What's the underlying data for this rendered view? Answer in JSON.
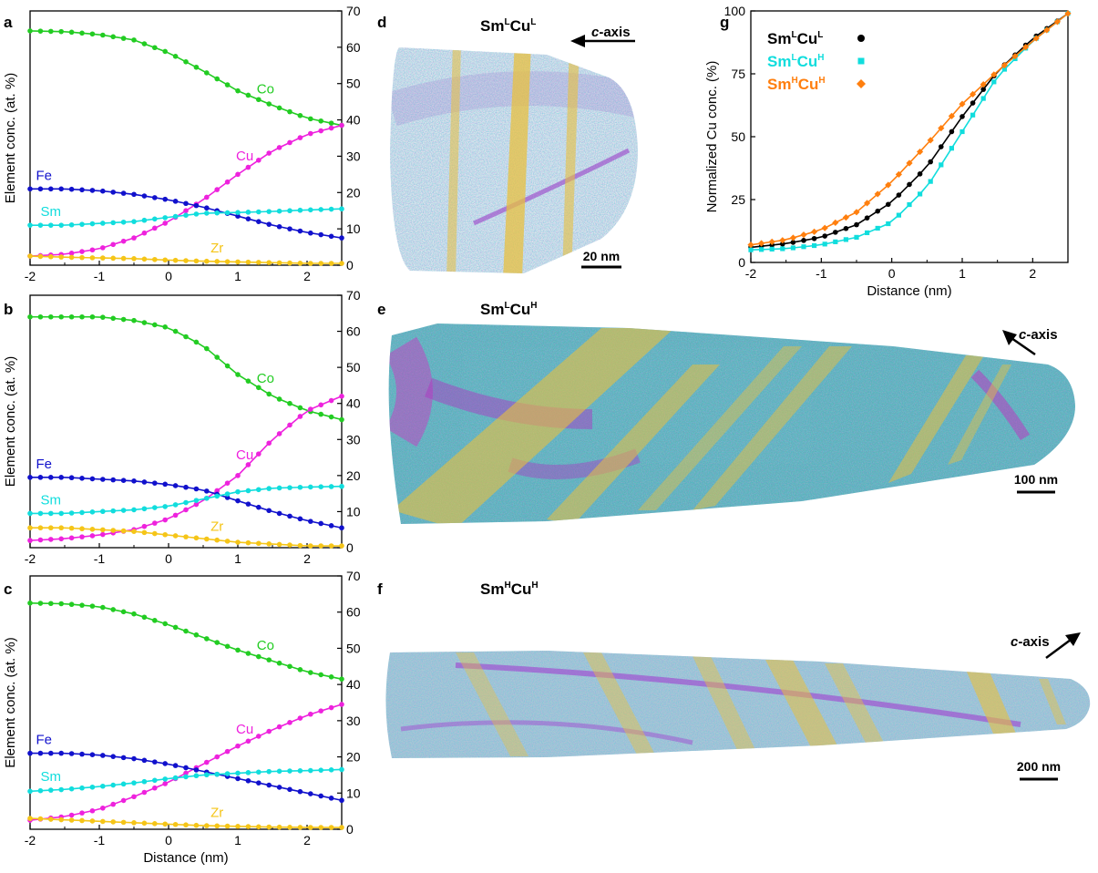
{
  "figure": {
    "panels": {
      "a": {
        "label": "a"
      },
      "b": {
        "label": "b"
      },
      "c": {
        "label": "c"
      },
      "d": {
        "label": "d",
        "title_base1": "Sm",
        "title_sup1": "L",
        "title_base2": "Cu",
        "title_sup2": "L",
        "axis_prefix": "c",
        "axis_suffix": "-axis",
        "scale_bar": "20 nm"
      },
      "e": {
        "label": "e",
        "title_base1": "Sm",
        "title_sup1": "L",
        "title_base2": "Cu",
        "title_sup2": "H",
        "axis_prefix": "c",
        "axis_suffix": "-axis",
        "scale_bar": "100 nm"
      },
      "f": {
        "label": "f",
        "title_base1": "Sm",
        "title_sup1": "H",
        "title_base2": "Cu",
        "title_sup2": "H",
        "axis_prefix": "c",
        "axis_suffix": "-axis",
        "scale_bar": "200 nm"
      },
      "g": {
        "label": "g"
      }
    },
    "colors": {
      "Co": "#22cc22",
      "Cu": "#ee22dd",
      "Fe": "#1111cc",
      "Sm": "#11dddd",
      "Zr": "#f5c518",
      "SmLCuL": "#000000",
      "SmLCuH": "#11dddd",
      "SmHCuH": "#ff7f0e",
      "axes": "#000000",
      "precipitate": "#e8c040"
    }
  },
  "chart_data": [
    {
      "id": "a",
      "type": "line",
      "title": "",
      "xlabel": "",
      "ylabel": "Element conc. (at. %)",
      "xlim": [
        -2,
        2.5
      ],
      "ylim": [
        0,
        70
      ],
      "xticks": [
        "-2",
        "-1",
        "0",
        "1",
        "2"
      ],
      "yticks": [
        "0",
        "10",
        "20",
        "30",
        "40",
        "50",
        "60",
        "70"
      ],
      "x": [
        -2,
        -1.5,
        -1,
        -0.5,
        0,
        0.5,
        1,
        1.5,
        2,
        2.5
      ],
      "series": [
        {
          "name": "Co",
          "values": [
            64.5,
            64.3,
            63.5,
            62,
            58.5,
            53.5,
            48,
            44,
            40.5,
            38.5
          ]
        },
        {
          "name": "Cu",
          "values": [
            2.5,
            3,
            4.5,
            7.5,
            12,
            18,
            25,
            31.5,
            36,
            38.5
          ]
        },
        {
          "name": "Fe",
          "values": [
            21,
            21,
            20.5,
            19.5,
            18,
            16,
            13.5,
            11,
            9,
            7.5
          ]
        },
        {
          "name": "Sm",
          "values": [
            11,
            11,
            11.5,
            12,
            13.2,
            14.3,
            14.5,
            14.8,
            15.2,
            15.5
          ]
        },
        {
          "name": "Zr",
          "values": [
            2.5,
            2.2,
            2,
            1.8,
            1.4,
            1.1,
            0.9,
            0.7,
            0.5,
            0.5
          ]
        }
      ]
    },
    {
      "id": "b",
      "type": "line",
      "title": "",
      "xlabel": "",
      "ylabel": "Element conc. (at. %)",
      "xlim": [
        -2,
        2.5
      ],
      "ylim": [
        0,
        70
      ],
      "xticks": [
        "-2",
        "-1",
        "0",
        "1",
        "2"
      ],
      "yticks": [
        "0",
        "10",
        "20",
        "30",
        "40",
        "50",
        "60",
        "70"
      ],
      "x": [
        -2,
        -1.5,
        -1,
        -0.5,
        0,
        0.5,
        1,
        1.5,
        2,
        2.5
      ],
      "series": [
        {
          "name": "Co",
          "values": [
            64,
            64,
            64,
            63,
            61,
            56,
            48,
            42,
            38,
            35.5
          ]
        },
        {
          "name": "Cu",
          "values": [
            2,
            2.5,
            3.5,
            5,
            8,
            13,
            20,
            30,
            38,
            42
          ]
        },
        {
          "name": "Fe",
          "values": [
            19.5,
            19.5,
            19,
            18.5,
            17.5,
            16,
            13,
            10,
            7.5,
            5.5
          ]
        },
        {
          "name": "Sm",
          "values": [
            9.5,
            9.5,
            10,
            10.5,
            11.5,
            13.5,
            15.5,
            16.5,
            16.8,
            17
          ]
        },
        {
          "name": "Zr",
          "values": [
            5.5,
            5.5,
            5,
            4.5,
            3.5,
            2.5,
            1.5,
            1,
            0.5,
            0.5
          ]
        }
      ]
    },
    {
      "id": "c",
      "type": "line",
      "title": "",
      "xlabel": "Distance (nm)",
      "ylabel": "Element conc. (at. %)",
      "xlim": [
        -2,
        2.5
      ],
      "ylim": [
        0,
        70
      ],
      "xticks": [
        "-2",
        "-1",
        "0",
        "1",
        "2"
      ],
      "yticks": [
        "0",
        "10",
        "20",
        "30",
        "40",
        "50",
        "60",
        "70"
      ],
      "x": [
        -2,
        -1.5,
        -1,
        -0.5,
        0,
        0.5,
        1,
        1.5,
        2,
        2.5
      ],
      "series": [
        {
          "name": "Co",
          "values": [
            62.5,
            62.3,
            61.5,
            59.5,
            56.5,
            53,
            49.5,
            46.5,
            43.5,
            41.5
          ]
        },
        {
          "name": "Cu",
          "values": [
            2.5,
            3.5,
            5.5,
            9,
            13,
            18,
            23,
            27.5,
            31.5,
            34.5
          ]
        },
        {
          "name": "Fe",
          "values": [
            21,
            21,
            20.5,
            19.5,
            18,
            16,
            14,
            12,
            10,
            8
          ]
        },
        {
          "name": "Sm",
          "values": [
            10.5,
            11,
            11.8,
            12.8,
            14,
            15,
            15.5,
            16,
            16.2,
            16.5
          ]
        },
        {
          "name": "Zr",
          "values": [
            3,
            2.6,
            2.2,
            1.8,
            1.4,
            1,
            0.8,
            0.6,
            0.5,
            0.5
          ]
        }
      ]
    },
    {
      "id": "g",
      "type": "line",
      "title": "",
      "xlabel": "Distance (nm)",
      "ylabel": "Normalized Cu conc. (%)",
      "xlim": [
        -2,
        2.5
      ],
      "ylim": [
        0,
        100
      ],
      "xticks": [
        "-2",
        "-1",
        "0",
        "1",
        "2"
      ],
      "yticks": [
        "0",
        "25",
        "50",
        "75",
        "100"
      ],
      "x": [
        -2,
        -1.5,
        -1,
        -0.5,
        0,
        0.5,
        1,
        1.5,
        2,
        2.5
      ],
      "legend": {
        "position": "top-left",
        "entries": [
          {
            "base1": "Sm",
            "sup1": "L",
            "base2": "Cu",
            "sup2": "L"
          },
          {
            "base1": "Sm",
            "sup1": "L",
            "base2": "Cu",
            "sup2": "H"
          },
          {
            "base1": "Sm",
            "sup1": "H",
            "base2": "Cu",
            "sup2": "H"
          }
        ]
      },
      "series": [
        {
          "name": "SmLCuL",
          "marker": "circle",
          "values": [
            6,
            7.5,
            10,
            15,
            24,
            38,
            58,
            76,
            89,
            99
          ]
        },
        {
          "name": "SmLCuH",
          "marker": "square",
          "values": [
            5,
            5.5,
            7,
            10,
            16,
            30,
            52,
            74,
            88,
            99
          ]
        },
        {
          "name": "SmHCuH",
          "marker": "diamond",
          "values": [
            7,
            9,
            13,
            20,
            32,
            47,
            63,
            76,
            88,
            99
          ]
        }
      ]
    }
  ]
}
